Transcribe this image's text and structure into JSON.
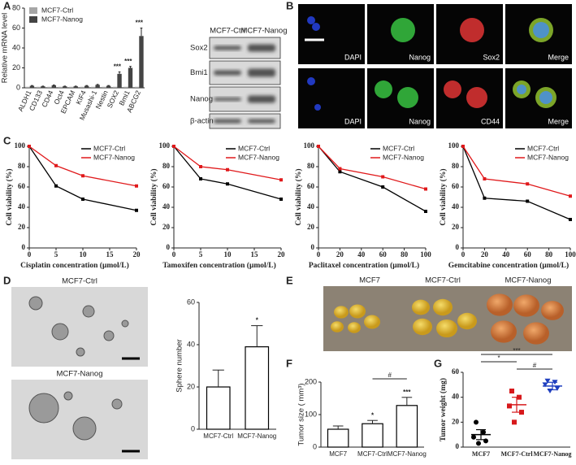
{
  "panel_labels": [
    "A",
    "B",
    "C",
    "D",
    "E",
    "F",
    "G"
  ],
  "blot": {
    "columns": [
      "MCF7-Ctrl",
      "MCF7-Nanog"
    ],
    "rows": [
      "Sox2",
      "Bmi1",
      "Nanog",
      "β-actin"
    ]
  },
  "images": {
    "B": [
      [
        "DAPI",
        "Nanog",
        "Sox2",
        "Merge"
      ],
      [
        "DAPI",
        "Nanog",
        "CD44",
        "Merge"
      ]
    ],
    "D": [
      "MCF7-Ctrl",
      "MCF7-Nanog"
    ],
    "E": [
      "MCF7",
      "MCF7-Ctrl",
      "MCF7-Nanog"
    ]
  },
  "chart_data": [
    {
      "type": "bar",
      "ylabel": "Relative mRNA level",
      "ylim": [
        0,
        80
      ],
      "yticks": [
        0,
        20,
        40,
        60,
        80
      ],
      "legend": "upper left",
      "categories": [
        "ALDH1",
        "CD133",
        "CD44",
        "Oct4",
        "EPCAM",
        "KIF4",
        "Musashi-1",
        "Nestin",
        "SOX2",
        "Bmi1",
        "ABCG2"
      ],
      "series": [
        {
          "name": "MCF7-Ctrl",
          "color": "#a6a6a6",
          "values": [
            1,
            1,
            1,
            1,
            1,
            1,
            1,
            1,
            1,
            1,
            1
          ]
        },
        {
          "name": "MCF7-Nanog",
          "color": "#444444",
          "values": [
            2,
            1.5,
            2.5,
            1.5,
            1.5,
            2,
            3,
            2,
            14,
            20,
            52
          ],
          "errors": [
            0.3,
            0.2,
            0.3,
            0.2,
            0.2,
            0.3,
            0.4,
            0.3,
            2,
            1.5,
            8
          ]
        }
      ],
      "significance": [
        null,
        null,
        null,
        null,
        null,
        null,
        null,
        null,
        "***",
        "***",
        "***"
      ]
    },
    {
      "type": "line",
      "ylabel": "Cell viability (%)",
      "xlabel": "Cisplatin concentration (μmol/L)",
      "legend": "upper right",
      "xlim": [
        0,
        20
      ],
      "xticks": [
        0,
        5,
        10,
        15,
        20
      ],
      "ylim": [
        0,
        100
      ],
      "yticks": [
        0,
        20,
        40,
        60,
        80,
        100
      ],
      "x": [
        0,
        5,
        10,
        20
      ],
      "series": [
        {
          "name": "MCF7-Ctrl",
          "color": "#000000",
          "values": [
            100,
            61,
            48,
            37
          ]
        },
        {
          "name": "MCF7-Nanog",
          "color": "#e0191b",
          "values": [
            100,
            81,
            71,
            61
          ]
        }
      ]
    },
    {
      "type": "line",
      "ylabel": "Cell viability (%)",
      "xlabel": "Tamoxifen concentration (μmol/L)",
      "legend": "upper right",
      "xlim": [
        0,
        20
      ],
      "xticks": [
        0,
        5,
        10,
        15,
        20
      ],
      "ylim": [
        0,
        100
      ],
      "yticks": [
        0,
        20,
        40,
        60,
        80,
        100
      ],
      "x": [
        0,
        5,
        10,
        20
      ],
      "series": [
        {
          "name": "MCF7-Ctrl",
          "color": "#000000",
          "values": [
            100,
            68,
            63,
            48
          ]
        },
        {
          "name": "MCF7-Nanog",
          "color": "#e0191b",
          "values": [
            100,
            80,
            77,
            67
          ]
        }
      ]
    },
    {
      "type": "line",
      "ylabel": "Cell viability (%)",
      "xlabel": "Paclitaxel concentration (μmol/L)",
      "legend": "upper right",
      "xlim": [
        0,
        100
      ],
      "xticks": [
        0,
        20,
        40,
        60,
        80,
        100
      ],
      "ylim": [
        0,
        100
      ],
      "yticks": [
        0,
        20,
        40,
        60,
        80,
        100
      ],
      "x": [
        0,
        20,
        60,
        100
      ],
      "series": [
        {
          "name": "MCF7-Ctrl",
          "color": "#000000",
          "values": [
            100,
            75,
            60,
            36
          ]
        },
        {
          "name": "MCF7-Nanog",
          "color": "#e0191b",
          "values": [
            100,
            78,
            70,
            58
          ]
        }
      ]
    },
    {
      "type": "line",
      "ylabel": "Cell viability (%)",
      "xlabel": "Gemcitabine concentration (μmol/L)",
      "legend": "upper right",
      "xlim": [
        0,
        100
      ],
      "xticks": [
        0,
        20,
        40,
        60,
        80,
        100
      ],
      "ylim": [
        0,
        100
      ],
      "yticks": [
        0,
        20,
        40,
        60,
        80,
        100
      ],
      "x": [
        0,
        20,
        60,
        100
      ],
      "series": [
        {
          "name": "MCF7-Ctrl",
          "color": "#000000",
          "values": [
            100,
            49,
            46,
            28
          ]
        },
        {
          "name": "MCF7-Nanog",
          "color": "#e0191b",
          "values": [
            100,
            68,
            63,
            51
          ]
        }
      ]
    },
    {
      "type": "bar",
      "ylabel": "Sphere number",
      "ylim": [
        0,
        60
      ],
      "yticks": [
        0,
        20,
        40,
        60
      ],
      "categories": [
        "MCF7-Ctrl",
        "MCF7-Nanog"
      ],
      "values": [
        20,
        39
      ],
      "errors": [
        8,
        10
      ],
      "color": "#ffffff",
      "significance": [
        null,
        "*"
      ]
    },
    {
      "type": "bar",
      "ylabel": "Tumor size ( mm³)",
      "ylim": [
        0,
        200
      ],
      "yticks": [
        0,
        100,
        200
      ],
      "categories": [
        "MCF7",
        "MCF7-Ctrl",
        "MCF7-Nanog"
      ],
      "values": [
        55,
        72,
        128
      ],
      "errors": [
        10,
        10,
        25
      ],
      "color": "#ffffff",
      "significance": [
        null,
        "*",
        "***"
      ],
      "brackets": [
        {
          "from": "MCF7-Ctrl",
          "to": "MCF7-Nanog",
          "label": "#"
        }
      ]
    },
    {
      "type": "strip",
      "ylabel": "Tumor weight (mg)",
      "ylim": [
        0,
        60
      ],
      "yticks": [
        0,
        20,
        40,
        60
      ],
      "categories": [
        "MCF7",
        "MCF7-Ctrl",
        "MCF7-Nanog"
      ],
      "colors": [
        "#000000",
        "#d7191c",
        "#1f3fbf"
      ],
      "values": [
        [
          3,
          5,
          8,
          12,
          20
        ],
        [
          20,
          28,
          33,
          40,
          45
        ],
        [
          45,
          47,
          50,
          52,
          53
        ]
      ],
      "means": [
        10,
        34,
        49
      ],
      "sems": [
        4,
        6,
        3
      ],
      "brackets": [
        {
          "from": "MCF7-Ctrl",
          "to": "MCF7-Nanog",
          "label": "#"
        },
        {
          "from": "MCF7",
          "to": "MCF7-Ctrl",
          "label": "*"
        },
        {
          "from": "MCF7",
          "to": "MCF7-Nanog",
          "label": "***"
        }
      ]
    }
  ]
}
